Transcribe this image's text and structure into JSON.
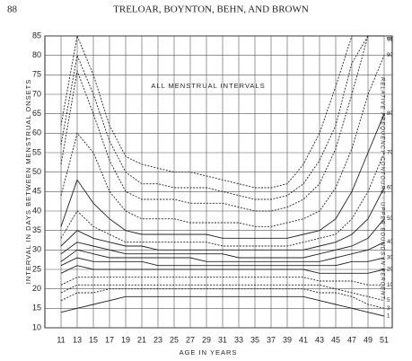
{
  "header": {
    "page_number": "88",
    "authors": "TRELOAR, BOYNTON, BEHN, AND BROWN"
  },
  "chart_data": {
    "type": "line",
    "title": "ALL MENSTRUAL INTERVALS",
    "y_label": "INTERVAL IN DAYS BETWEEN MENSTRUAL ONSETS",
    "x_label": "AGE IN YEARS",
    "annotation": "RELATIVE FREQUENCY CONTOURS - UPPER BOUNDS IN PERCENT",
    "x": [
      11,
      13,
      15,
      17,
      19,
      21,
      23,
      25,
      27,
      29,
      31,
      33,
      35,
      37,
      39,
      41,
      43,
      45,
      47,
      49,
      51
    ],
    "xlim": [
      9,
      52
    ],
    "xticks": [
      11,
      13,
      15,
      17,
      19,
      21,
      23,
      25,
      27,
      29,
      31,
      33,
      35,
      37,
      39,
      41,
      43,
      45,
      47,
      49,
      51
    ],
    "ylim": [
      10,
      85
    ],
    "yticks": [
      10,
      15,
      20,
      25,
      30,
      35,
      40,
      45,
      50,
      55,
      60,
      65,
      70,
      75,
      80,
      85
    ],
    "grid": true,
    "series": [
      {
        "name": "99",
        "color": "#222",
        "style": "dashed",
        "values": [
          62,
          85,
          75,
          62,
          54,
          52,
          51,
          50,
          50,
          49,
          48,
          47,
          46,
          46,
          47,
          52,
          60,
          72,
          85,
          85,
          85
        ]
      },
      {
        "name": "97",
        "color": "#222",
        "style": "dashed",
        "values": [
          57,
          80,
          70,
          58,
          50,
          47,
          47,
          46,
          46,
          46,
          45,
          44,
          43,
          43,
          44,
          47,
          53,
          62,
          78,
          85,
          85
        ]
      },
      {
        "name": "95",
        "color": "#222",
        "style": "dashed",
        "values": [
          52,
          76,
          65,
          53,
          45,
          43,
          43,
          43,
          42,
          42,
          42,
          41,
          40,
          40,
          41,
          43,
          47,
          56,
          70,
          85,
          85
        ]
      },
      {
        "name": "90",
        "color": "#222",
        "style": "dashed",
        "values": [
          44,
          60,
          55,
          45,
          40,
          38,
          38,
          38,
          37,
          37,
          37,
          37,
          36,
          36,
          37,
          38,
          40,
          46,
          56,
          70,
          80
        ]
      },
      {
        "name": "80",
        "color": "#222",
        "style": "solid",
        "values": [
          36,
          48,
          42,
          38,
          35,
          34,
          34,
          34,
          34,
          34,
          33,
          33,
          33,
          33,
          33,
          34,
          35,
          38,
          45,
          55,
          65
        ]
      },
      {
        "name": "70",
        "color": "#222",
        "style": "dashed",
        "values": [
          33,
          40,
          36,
          34,
          32,
          32,
          32,
          32,
          32,
          32,
          31,
          31,
          31,
          31,
          31,
          32,
          33,
          34,
          38,
          45,
          55
        ]
      },
      {
        "name": "60",
        "color": "#222",
        "style": "solid",
        "values": [
          31,
          35,
          33,
          32,
          31,
          31,
          30,
          30,
          30,
          30,
          30,
          30,
          30,
          30,
          30,
          30,
          31,
          32,
          34,
          38,
          46
        ]
      },
      {
        "name": "50",
        "color": "#222",
        "style": "solid",
        "values": [
          29,
          32,
          31,
          30,
          29,
          29,
          29,
          29,
          29,
          29,
          29,
          28,
          28,
          28,
          28,
          28,
          29,
          30,
          31,
          33,
          38
        ]
      },
      {
        "name": "40",
        "color": "#222",
        "style": "solid",
        "values": [
          27,
          30,
          29,
          28,
          28,
          28,
          28,
          28,
          28,
          27,
          27,
          27,
          27,
          27,
          27,
          27,
          27,
          28,
          29,
          30,
          32
        ]
      },
      {
        "name": "30",
        "color": "#222",
        "style": "solid",
        "values": [
          26,
          28,
          27,
          27,
          27,
          27,
          26,
          26,
          26,
          26,
          26,
          26,
          26,
          26,
          26,
          26,
          26,
          26,
          27,
          27,
          28
        ]
      },
      {
        "name": "20",
        "color": "#222",
        "style": "solid",
        "values": [
          24,
          26,
          25,
          25,
          25,
          25,
          25,
          25,
          25,
          25,
          25,
          25,
          25,
          25,
          25,
          25,
          24,
          24,
          24,
          24,
          25
        ]
      },
      {
        "name": "10",
        "color": "#222",
        "style": "dashed",
        "values": [
          21,
          23,
          23,
          23,
          23,
          23,
          23,
          23,
          23,
          23,
          23,
          23,
          23,
          23,
          23,
          23,
          22,
          22,
          22,
          21,
          21
        ]
      },
      {
        "name": "5",
        "color": "#222",
        "style": "dashed",
        "values": [
          19,
          21,
          21,
          21,
          21,
          21,
          21,
          21,
          21,
          21,
          21,
          21,
          21,
          21,
          21,
          21,
          21,
          20,
          19,
          18,
          17
        ]
      },
      {
        "name": "3",
        "color": "#222",
        "style": "dashed",
        "values": [
          17,
          19,
          19,
          20,
          20,
          20,
          20,
          20,
          20,
          20,
          20,
          20,
          20,
          20,
          20,
          20,
          19,
          19,
          18,
          16,
          15
        ]
      },
      {
        "name": "1",
        "color": "#222",
        "style": "solid",
        "values": [
          14,
          15,
          16,
          17,
          18,
          18,
          18,
          18,
          18,
          18,
          18,
          18,
          18,
          18,
          18,
          18,
          17,
          16,
          15,
          14,
          13
        ]
      }
    ]
  }
}
